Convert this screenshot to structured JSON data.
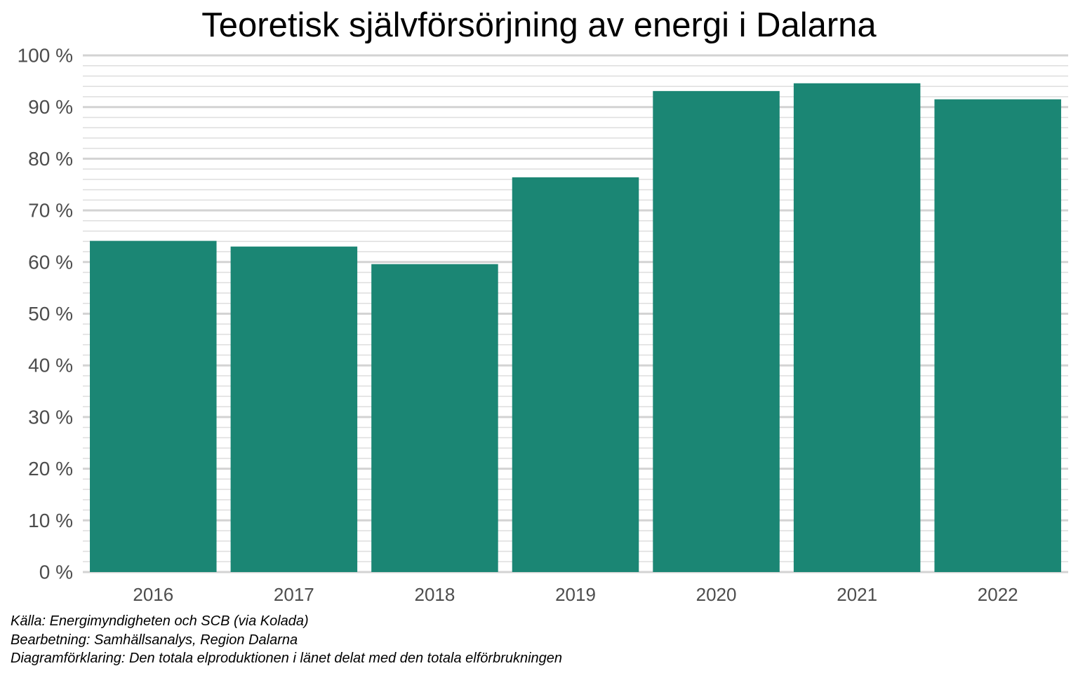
{
  "chart_data": {
    "type": "bar",
    "title": "Teoretisk självförsörjning av energi i Dalarna",
    "xlabel": "",
    "ylabel": "",
    "categories": [
      "2016",
      "2017",
      "2018",
      "2019",
      "2020",
      "2021",
      "2022"
    ],
    "values": [
      64.1,
      63.0,
      59.6,
      76.4,
      93.1,
      94.6,
      91.5
    ],
    "ylim": [
      0,
      100
    ],
    "y_ticks": [
      0,
      10,
      20,
      30,
      40,
      50,
      60,
      70,
      80,
      90,
      100
    ],
    "y_tick_labels": [
      "0 %",
      "10 %",
      "20 %",
      "30 %",
      "40 %",
      "50 %",
      "60 %",
      "70 %",
      "80 %",
      "90 %",
      "100 %"
    ],
    "minor_grid_step": 2,
    "grid": true,
    "legend": "none",
    "bar_color": "#1b8674",
    "major_grid_color": "#d3d3d3",
    "minor_grid_color": "#dedede",
    "tick_label_color": "#4d4d4d"
  },
  "footnotes": {
    "source": "Källa: Energimyndigheten och SCB (via Kolada)",
    "processing": "Bearbetning: Samhällsanalys, Region Dalarna",
    "explanation": "Diagramförklaring: Den totala elproduktionen i länet delat med den totala elförbrukningen"
  }
}
